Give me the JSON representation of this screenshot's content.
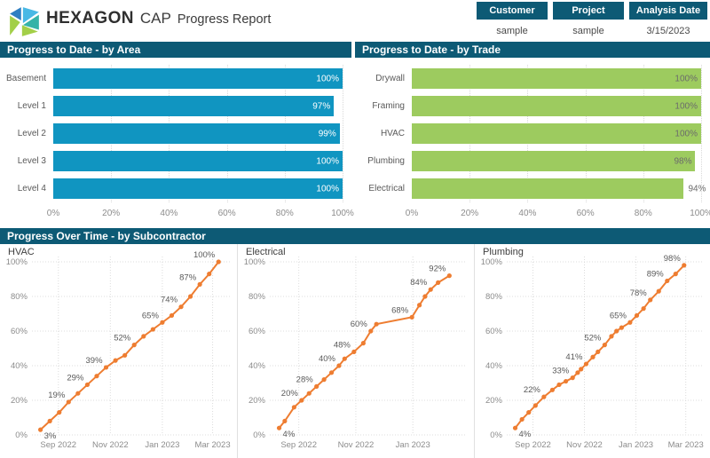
{
  "header": {
    "brand": "HEXAGON",
    "product": "CAP",
    "title": "Progress Report",
    "logo_icon": "hexagon-logo",
    "info_boxes": [
      {
        "label": "Customer",
        "value": "sample"
      },
      {
        "label": "Project",
        "value": "sample"
      },
      {
        "label": "Analysis Date",
        "value": "3/15/2023"
      }
    ]
  },
  "colors": {
    "section_bar": "#0d5a75",
    "area_bar": "#1095c1",
    "trade_bar": "#9dcb5f",
    "line": "#ee7d31",
    "axis_text": "#8c8c8c",
    "label_text": "#595959"
  },
  "chart_data": [
    {
      "id": "progress-by-area",
      "type": "bar",
      "title": "Progress to Date - by Area",
      "orientation": "horizontal",
      "categories": [
        "Basement",
        "Level 1",
        "Level 2",
        "Level 3",
        "Level 4"
      ],
      "values": [
        100,
        97,
        99,
        100,
        100
      ],
      "value_labels": [
        "100%",
        "97%",
        "99%",
        "100%",
        "100%"
      ],
      "labels_inside": [
        true,
        true,
        true,
        true,
        true
      ],
      "bar_color": "#1095c1",
      "value_label_color": "#ffffff",
      "xlim": [
        0,
        100
      ],
      "x_ticks": [
        {
          "v": 0,
          "label": "0%"
        },
        {
          "v": 20,
          "label": "20%"
        },
        {
          "v": 40,
          "label": "40%"
        },
        {
          "v": 60,
          "label": "60%"
        },
        {
          "v": 80,
          "label": "80%"
        },
        {
          "v": 100,
          "label": "100%"
        }
      ]
    },
    {
      "id": "progress-by-trade",
      "type": "bar",
      "title": "Progress to Date - by Trade",
      "orientation": "horizontal",
      "categories": [
        "Drywall",
        "Framing",
        "HVAC",
        "Plumbing",
        "Electrical"
      ],
      "values": [
        100,
        100,
        100,
        98,
        94
      ],
      "value_labels": [
        "100%",
        "100%",
        "100%",
        "98%",
        "94%"
      ],
      "labels_inside": [
        true,
        true,
        true,
        true,
        false
      ],
      "bar_color": "#9dcb5f",
      "value_label_color": "#6b6b6b",
      "xlim": [
        0,
        100
      ],
      "x_ticks": [
        {
          "v": 0,
          "label": "0%"
        },
        {
          "v": 20,
          "label": "20%"
        },
        {
          "v": 40,
          "label": "40%"
        },
        {
          "v": 60,
          "label": "60%"
        },
        {
          "v": 80,
          "label": "80%"
        },
        {
          "v": 100,
          "label": "100%"
        }
      ]
    },
    {
      "id": "progress-over-time",
      "type": "line-group",
      "title": "Progress Over Time - by Subcontractor",
      "line_color": "#ee7d31",
      "label_color": "#595959",
      "ylim": [
        0,
        100
      ],
      "y_ticks": [
        {
          "v": 0,
          "label": "0%"
        },
        {
          "v": 20,
          "label": "20%"
        },
        {
          "v": 40,
          "label": "40%"
        },
        {
          "v": 60,
          "label": "60%"
        },
        {
          "v": 80,
          "label": "80%"
        },
        {
          "v": 100,
          "label": "100%"
        }
      ],
      "charts": [
        {
          "title": "HVAC",
          "x_domain": [
            0,
            226
          ],
          "x_ticks": [
            {
              "d": 31,
              "label": "Sep 2022"
            },
            {
              "d": 92,
              "label": "Nov 2022"
            },
            {
              "d": 153,
              "label": "Jan 2023"
            },
            {
              "d": 212,
              "label": "Mar 2023"
            }
          ],
          "points": [
            {
              "d": 10,
              "v": 3,
              "label": "3%"
            },
            {
              "d": 21,
              "v": 8
            },
            {
              "d": 32,
              "v": 13
            },
            {
              "d": 43,
              "v": 19,
              "label": "19%"
            },
            {
              "d": 54,
              "v": 24
            },
            {
              "d": 65,
              "v": 29,
              "label": "29%"
            },
            {
              "d": 76,
              "v": 34
            },
            {
              "d": 87,
              "v": 39,
              "label": "39%"
            },
            {
              "d": 98,
              "v": 43
            },
            {
              "d": 109,
              "v": 46
            },
            {
              "d": 120,
              "v": 52,
              "label": "52%"
            },
            {
              "d": 131,
              "v": 57
            },
            {
              "d": 142,
              "v": 61
            },
            {
              "d": 153,
              "v": 65,
              "label": "65%"
            },
            {
              "d": 164,
              "v": 69
            },
            {
              "d": 175,
              "v": 74,
              "label": "74%"
            },
            {
              "d": 186,
              "v": 80
            },
            {
              "d": 197,
              "v": 87,
              "label": "87%"
            },
            {
              "d": 208,
              "v": 93
            },
            {
              "d": 219,
              "v": 100,
              "label": "100%"
            }
          ]
        },
        {
          "title": "Electrical",
          "x_domain": [
            0,
            205
          ],
          "x_ticks": [
            {
              "d": 31,
              "label": "Sep 2022"
            },
            {
              "d": 92,
              "label": "Nov 2022"
            },
            {
              "d": 153,
              "label": "Jan 2023"
            }
          ],
          "points": [
            {
              "d": 10,
              "v": 4,
              "label": "4%"
            },
            {
              "d": 16,
              "v": 8
            },
            {
              "d": 26,
              "v": 16
            },
            {
              "d": 34,
              "v": 20,
              "label": "20%"
            },
            {
              "d": 42,
              "v": 24
            },
            {
              "d": 50,
              "v": 28,
              "label": "28%"
            },
            {
              "d": 58,
              "v": 32
            },
            {
              "d": 66,
              "v": 36
            },
            {
              "d": 74,
              "v": 40,
              "label": "40%"
            },
            {
              "d": 80,
              "v": 44
            },
            {
              "d": 90,
              "v": 48,
              "label": "48%"
            },
            {
              "d": 100,
              "v": 53
            },
            {
              "d": 108,
              "v": 60,
              "label": "60%"
            },
            {
              "d": 114,
              "v": 64
            },
            {
              "d": 152,
              "v": 68,
              "label": "68%"
            },
            {
              "d": 160,
              "v": 75
            },
            {
              "d": 166,
              "v": 80
            },
            {
              "d": 172,
              "v": 84,
              "label": "84%"
            },
            {
              "d": 180,
              "v": 88
            },
            {
              "d": 192,
              "v": 92,
              "label": "92%"
            }
          ]
        },
        {
          "title": "Plumbing",
          "x_domain": [
            0,
            226
          ],
          "x_ticks": [
            {
              "d": 31,
              "label": "Sep 2022"
            },
            {
              "d": 92,
              "label": "Nov 2022"
            },
            {
              "d": 153,
              "label": "Jan 2023"
            },
            {
              "d": 212,
              "label": "Mar 2023"
            }
          ],
          "points": [
            {
              "d": 10,
              "v": 4,
              "label": "4%"
            },
            {
              "d": 18,
              "v": 9
            },
            {
              "d": 26,
              "v": 13
            },
            {
              "d": 34,
              "v": 17
            },
            {
              "d": 44,
              "v": 22,
              "label": "22%"
            },
            {
              "d": 54,
              "v": 26
            },
            {
              "d": 62,
              "v": 29
            },
            {
              "d": 70,
              "v": 31
            },
            {
              "d": 78,
              "v": 33,
              "label": "33%"
            },
            {
              "d": 84,
              "v": 36
            },
            {
              "d": 88,
              "v": 38
            },
            {
              "d": 94,
              "v": 41,
              "label": "41%"
            },
            {
              "d": 102,
              "v": 45
            },
            {
              "d": 108,
              "v": 48
            },
            {
              "d": 116,
              "v": 52,
              "label": "52%"
            },
            {
              "d": 124,
              "v": 57
            },
            {
              "d": 130,
              "v": 60
            },
            {
              "d": 136,
              "v": 62
            },
            {
              "d": 146,
              "v": 65,
              "label": "65%"
            },
            {
              "d": 154,
              "v": 69
            },
            {
              "d": 162,
              "v": 73
            },
            {
              "d": 170,
              "v": 78,
              "label": "78%"
            },
            {
              "d": 180,
              "v": 83
            },
            {
              "d": 190,
              "v": 89,
              "label": "89%"
            },
            {
              "d": 200,
              "v": 93
            },
            {
              "d": 210,
              "v": 98,
              "label": "98%"
            }
          ]
        }
      ]
    }
  ]
}
